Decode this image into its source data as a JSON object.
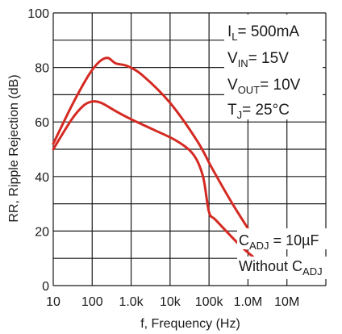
{
  "chart_data": {
    "type": "line",
    "xlabel": "f, Frequency (Hz)",
    "ylabel": "RR, Ripple Rejection (dB)",
    "x_scale": "log",
    "xlim": [
      10,
      100000000
    ],
    "ylim": [
      0,
      100
    ],
    "x_tick_values": [
      10,
      100,
      1000,
      10000,
      100000,
      1000000,
      10000000
    ],
    "x_tick_labels": [
      "10",
      "100",
      "1.0k",
      "10k",
      "100k",
      "1.0M",
      "10M"
    ],
    "y_ticks": [
      0,
      20,
      40,
      60,
      80,
      100
    ],
    "grid": true,
    "series": [
      {
        "name": "C_ADJ = 10µF",
        "color": "#d42a22",
        "points": [
          [
            10,
            52
          ],
          [
            30,
            66
          ],
          [
            80,
            77
          ],
          [
            150,
            82
          ],
          [
            250,
            83.5
          ],
          [
            400,
            81.5
          ],
          [
            800,
            80.5
          ],
          [
            2000,
            77
          ],
          [
            10000,
            67
          ],
          [
            50000,
            53
          ],
          [
            120000,
            43
          ],
          [
            400000,
            30
          ],
          [
            1500000,
            17
          ]
        ]
      },
      {
        "name": "Without C_ADJ",
        "color": "#d42a22",
        "points": [
          [
            10,
            50
          ],
          [
            30,
            61
          ],
          [
            60,
            66
          ],
          [
            100,
            67.5
          ],
          [
            170,
            67
          ],
          [
            400,
            64
          ],
          [
            1000,
            61
          ],
          [
            4000,
            57
          ],
          [
            15000,
            53
          ],
          [
            40000,
            48
          ],
          [
            70000,
            40
          ],
          [
            100000,
            27
          ],
          [
            150000,
            24
          ],
          [
            600000,
            15
          ],
          [
            1500000,
            10
          ]
        ]
      }
    ]
  },
  "annotations": {
    "il_main": "I",
    "il_sub": "L",
    "il_rest": "= 500mA",
    "vin_main": "V",
    "vin_sub": "IN",
    "vin_rest": "= 15V",
    "vout_main": "V",
    "vout_sub": "OUT",
    "vout_rest": "= 10V",
    "tj_main": "T",
    "tj_sub": "J",
    "tj_rest": "= 25°C"
  },
  "legend_labels": {
    "cadj_main": "C",
    "cadj_sub": "ADJ",
    "cadj_rest": " = 10µF",
    "without_main": "Without C",
    "without_sub": "ADJ"
  }
}
